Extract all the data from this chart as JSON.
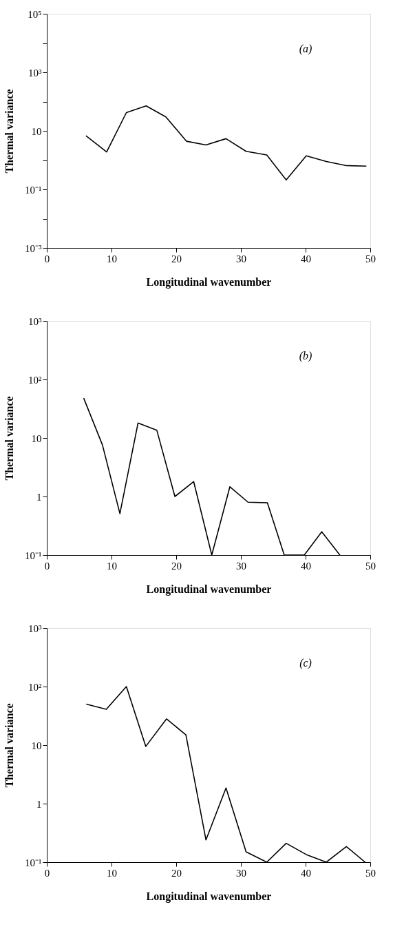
{
  "chart_data": [
    {
      "type": "line",
      "xlabel": "Longitudinal wavenumber",
      "ylabel": "Thermal variance",
      "annotations": [
        "(a)"
      ],
      "log": "y",
      "grid": false,
      "marker": "none",
      "line_style": "solid",
      "xlim": [
        0,
        50
      ],
      "xticks": [
        0,
        10,
        20,
        30,
        40,
        50
      ],
      "ylim": [
        0.001,
        100000
      ],
      "yticks": [
        {
          "value": 0.001,
          "label": "10⁻³"
        },
        {
          "value": 0.01,
          "label": null
        },
        {
          "value": 0.1,
          "label": "10⁻¹"
        },
        {
          "value": 1,
          "label": null
        },
        10,
        {
          "value": 100,
          "label": null
        },
        {
          "value": 1000,
          "label": "10³"
        },
        {
          "value": 10000,
          "label": null
        },
        {
          "value": 100000,
          "label": "10⁵"
        }
      ],
      "series": [
        {
          "color": "#000000",
          "x": [
            6.05,
            9.25,
            12.3,
            15.35,
            18.4,
            21.6,
            24.6,
            27.7,
            30.8,
            34.0,
            37.0,
            40.1,
            43.2,
            46.3,
            49.4
          ],
          "values": [
            6.8,
            1.9,
            42,
            71,
            30,
            4.4,
            3.3,
            5.4,
            2.0,
            1.5,
            0.21,
            1.4,
            0.9,
            0.65,
            0.62
          ]
        }
      ]
    },
    {
      "type": "line",
      "xlabel": "Longitudinal wavenumber",
      "ylabel": "Thermal variance",
      "annotations": [
        "(b)"
      ],
      "log": "y",
      "grid": false,
      "marker": "none",
      "line_style": "solid",
      "xlim": [
        0,
        50
      ],
      "xticks": [
        0,
        10,
        20,
        30,
        40,
        50
      ],
      "ylim": [
        0.1,
        1000
      ],
      "yticks": [
        {
          "value": 0.1,
          "label": "10⁻¹"
        },
        1,
        10,
        {
          "value": 100,
          "label": "10²"
        },
        {
          "value": 1000,
          "label": "10³"
        }
      ],
      "series": [
        {
          "color": "#000000",
          "x": [
            5.7,
            8.6,
            11.3,
            14.1,
            17.0,
            19.8,
            22.7,
            25.5,
            28.3,
            31.1,
            34.1,
            36.7,
            39.8,
            42.5,
            45.3
          ],
          "values": [
            48,
            7.6,
            0.51,
            18,
            13.6,
            1.0,
            1.8,
            0.1,
            1.47,
            0.8,
            0.78,
            0.1,
            0.1,
            0.25,
            0.1
          ]
        }
      ]
    },
    {
      "type": "line",
      "xlabel": "Longitudinal wavenumber",
      "ylabel": "Thermal variance",
      "annotations": [
        "(c)"
      ],
      "log": "y",
      "grid": false,
      "marker": "none",
      "line_style": "solid",
      "xlim": [
        0,
        50
      ],
      "xticks": [
        0,
        10,
        20,
        30,
        40,
        50
      ],
      "ylim": [
        0.1,
        1000
      ],
      "yticks": [
        {
          "value": 0.1,
          "label": "10⁻¹"
        },
        1,
        10,
        {
          "value": 100,
          "label": "10²"
        },
        {
          "value": 1000,
          "label": "10³"
        }
      ],
      "series": [
        {
          "color": "#000000",
          "x": [
            6.1,
            9.2,
            12.3,
            15.3,
            18.5,
            21.5,
            24.6,
            27.7,
            30.8,
            34.0,
            37.0,
            40.1,
            43.2,
            46.3,
            49.2
          ],
          "values": [
            50,
            41,
            100,
            9.5,
            28,
            15,
            0.24,
            1.85,
            0.15,
            0.1,
            0.21,
            0.135,
            0.1,
            0.185,
            0.1
          ]
        }
      ]
    }
  ]
}
